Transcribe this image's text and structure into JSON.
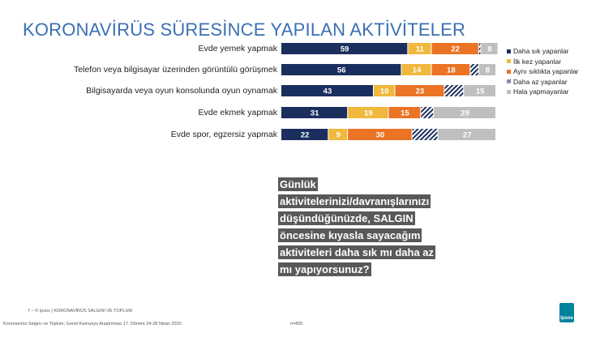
{
  "title": "KORONAVİRÜS SÜRESİNCE YAPILAN AKTİVİTELER",
  "chart_data": {
    "type": "bar",
    "orientation": "horizontal-stacked-100",
    "categories": [
      "Evde yemek yapmak",
      "Telefon veya bilgisayar üzerinden görüntülü görüşmek",
      "Bilgisayarda veya oyun konsolunda oyun oynamak",
      "Evde ekmek yapmak",
      "Evde spor, egzersiz yapmak"
    ],
    "series": [
      {
        "name": "Daha sık yapanlar",
        "color": "#1b2f5e",
        "values": [
          59,
          56,
          43,
          31,
          22
        ],
        "labeled": true
      },
      {
        "name": "İlk kez yapanlar",
        "color": "#f0b83c",
        "values": [
          11,
          14,
          10,
          19,
          9
        ],
        "labeled": true
      },
      {
        "name": "Aynı sıklıkta yapanlar",
        "color": "#ea7324",
        "values": [
          22,
          18,
          23,
          15,
          30
        ],
        "labeled": true
      },
      {
        "name": "Daha az yapanlar",
        "color": "#1b2f5e",
        "pattern": "hatched",
        "values": [
          1,
          4,
          9,
          6,
          12
        ],
        "labeled": false
      },
      {
        "name": "Hala yapmayanlar",
        "color": "#bfbfbf",
        "values": [
          8,
          8,
          15,
          29,
          27
        ],
        "labeled": true
      }
    ],
    "legend": "right"
  },
  "question": "Günlük aktivitelerinizi/davranışlarınızı düşündüğünüzde, SALGIN öncesine kıyasla sayacağım aktiviteleri daha sık mı daha az mı yapıyorsunuz?",
  "footer": {
    "line1": "7 –  © Ipsos | KORONAVİRÜS SALGINI VE TOPLUM",
    "line2": "Koronavirüs Salgını ve Toplum; Genel Kamuoyu Araştırması 17. Dönem 24-28 Nisan 2020",
    "n": "n=800"
  },
  "logo": "Ipsos"
}
